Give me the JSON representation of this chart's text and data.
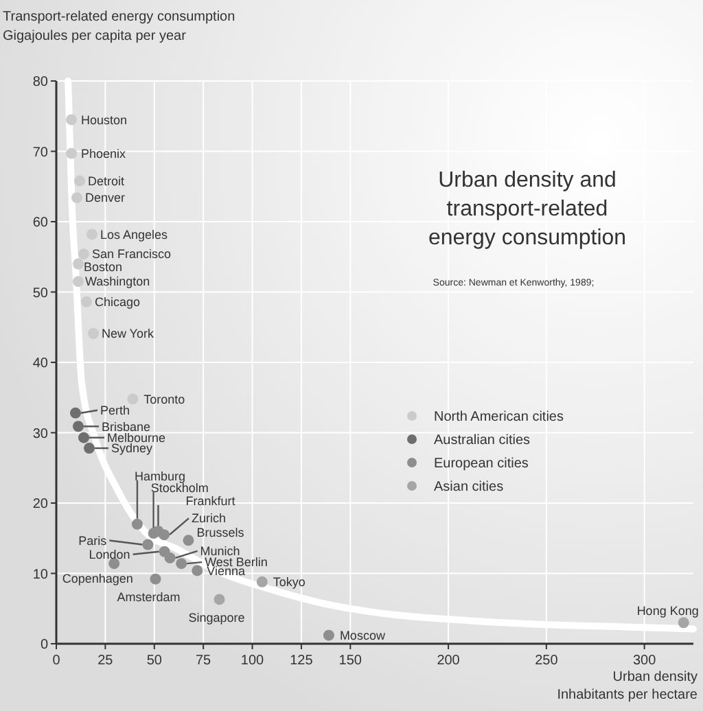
{
  "chart_data": {
    "type": "scatter",
    "title": "Urban density and transport-related energy consumption",
    "ylabel": "Transport-related energy consumption\nGigajoules per capita per year",
    "xlabel": "Urban density\nInhabitants per hectare",
    "xlim": [
      0,
      325
    ],
    "ylim": [
      0,
      80
    ],
    "xticks": [
      0,
      25,
      50,
      75,
      100,
      125,
      150,
      200,
      250,
      300
    ],
    "yticks": [
      0,
      10,
      20,
      30,
      40,
      50,
      60,
      70,
      80
    ],
    "grid": true,
    "legend": "right",
    "marker": "circle",
    "series": [
      {
        "type": "line",
        "marker": "none",
        "color": "#ffffff",
        "x": [
          6,
          8,
          10,
          13,
          20,
          31,
          45,
          62,
          85,
          111,
          140,
          167,
          210,
          251,
          290,
          325
        ],
        "values": [
          80,
          62,
          52.5,
          37,
          29,
          22,
          16,
          13.4,
          10,
          7.6,
          5.5,
          4.3,
          3.3,
          2.7,
          2.4,
          2.1
        ]
      },
      {
        "name": "North American cities",
        "color": "#cbcbcb",
        "x": [
          7.7,
          7.7,
          11.9,
          10.5,
          18.2,
          14,
          11.2,
          11.2,
          15.4,
          18.9,
          39
        ],
        "values": [
          74.5,
          69.7,
          65.8,
          63.4,
          58.2,
          55.4,
          54,
          51.5,
          48.6,
          44.1,
          34.8
        ]
      },
      {
        "name": "Australian cities",
        "color": "#6e6e6e",
        "x": [
          9.8,
          11.2,
          14,
          16.8
        ],
        "values": [
          32.8,
          30.9,
          29.3,
          27.8
        ]
      },
      {
        "name": "European cities",
        "color": "#8e8e8e",
        "x": [
          41.3,
          49.6,
          52,
          55,
          67.4,
          58,
          63.8,
          71.9,
          46.7,
          55.2,
          29.5,
          50.6,
          139
        ],
        "values": [
          17,
          15.7,
          16,
          15.5,
          14.7,
          12.2,
          11.4,
          10.4,
          14.1,
          13.1,
          11.4,
          9.2,
          1.2
        ]
      },
      {
        "name": "Asian cities",
        "color": "#a6a6a6",
        "x": [
          105,
          83.2,
          320
        ],
        "values": [
          8.8,
          6.3,
          3
        ]
      }
    ],
    "annotations": [
      "Source: Newman et Kenworthy, 1989;",
      {
        "text": "Houston",
        "x": 7.7,
        "y": 74.5
      },
      {
        "text": "Phoenix",
        "x": 7.7,
        "y": 69.7
      },
      {
        "text": "Detroit",
        "x": 11.9,
        "y": 65.8
      },
      {
        "text": "Denver",
        "x": 10.5,
        "y": 63.4
      },
      {
        "text": "Los Angeles",
        "x": 18.2,
        "y": 58.2
      },
      {
        "text": "San Francisco",
        "x": 14,
        "y": 55.4
      },
      {
        "text": "Boston",
        "x": 11.2,
        "y": 54
      },
      {
        "text": "Washington",
        "x": 11.2,
        "y": 51.5
      },
      {
        "text": "Chicago",
        "x": 15.4,
        "y": 48.6
      },
      {
        "text": "New York",
        "x": 18.9,
        "y": 44.1
      },
      {
        "text": "Toronto",
        "x": 39,
        "y": 34.8
      },
      {
        "text": "Perth",
        "x": 9.8,
        "y": 32.8
      },
      {
        "text": "Brisbane",
        "x": 11.2,
        "y": 30.9
      },
      {
        "text": "Melbourne",
        "x": 14,
        "y": 29.3
      },
      {
        "text": "Sydney",
        "x": 16.8,
        "y": 27.8
      },
      {
        "text": "Hamburg",
        "x": 41.3,
        "y": 17
      },
      {
        "text": "Stockholm",
        "x": 49.6,
        "y": 15.7
      },
      {
        "text": "Frankfurt",
        "x": 52,
        "y": 16
      },
      {
        "text": "Zurich",
        "x": 55,
        "y": 15.5
      },
      {
        "text": "Brussels",
        "x": 67.4,
        "y": 14.7
      },
      {
        "text": "Munich",
        "x": 58,
        "y": 12.2
      },
      {
        "text": "West Berlin",
        "x": 63.8,
        "y": 11.4
      },
      {
        "text": "Vienna",
        "x": 71.9,
        "y": 10.4
      },
      {
        "text": "Paris",
        "x": 46.7,
        "y": 14.1
      },
      {
        "text": "London",
        "x": 55.2,
        "y": 13.1
      },
      {
        "text": "Copenhagen",
        "x": 29.5,
        "y": 11.4
      },
      {
        "text": "Amsterdam",
        "x": 50.6,
        "y": 9.2
      },
      {
        "text": "Tokyo",
        "x": 105,
        "y": 8.8
      },
      {
        "text": "Singapore",
        "x": 83.2,
        "y": 6.3
      },
      {
        "text": "Moscow",
        "x": 139,
        "y": 1.2
      },
      {
        "text": "Hong Kong",
        "x": 320,
        "y": 3
      }
    ]
  }
}
